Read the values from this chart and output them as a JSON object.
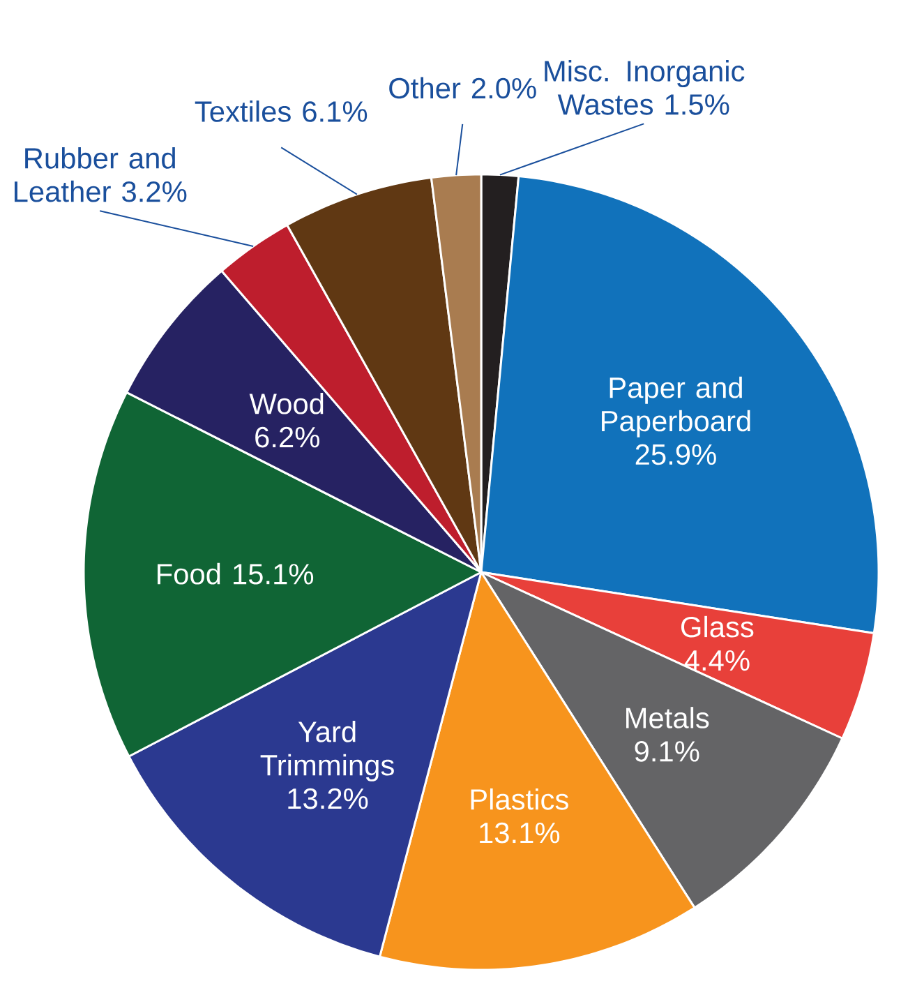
{
  "chart_data": {
    "type": "pie",
    "categories": [
      "Misc. Inorganic Wastes",
      "Paper and Paperboard",
      "Glass",
      "Metals",
      "Plastics",
      "Yard Trimmings",
      "Food",
      "Wood",
      "Rubber and Leather",
      "Textiles",
      "Other"
    ],
    "values": [
      1.5,
      25.9,
      4.4,
      9.1,
      13.1,
      13.2,
      15.1,
      6.2,
      3.2,
      6.1,
      2.0
    ],
    "value_labels": [
      "1.5%",
      "25.9%",
      "4.4%",
      "9.1%",
      "13.1%",
      "13.2%",
      "15.1%",
      "6.2%",
      "3.2%",
      "6.1%",
      "2.0%"
    ],
    "colors": [
      "#231f20",
      "#1172bb",
      "#e8403a",
      "#646466",
      "#f7941d",
      "#2b3990",
      "#106535",
      "#262262",
      "#be1e2d",
      "#603813",
      "#a97c50"
    ]
  }
}
